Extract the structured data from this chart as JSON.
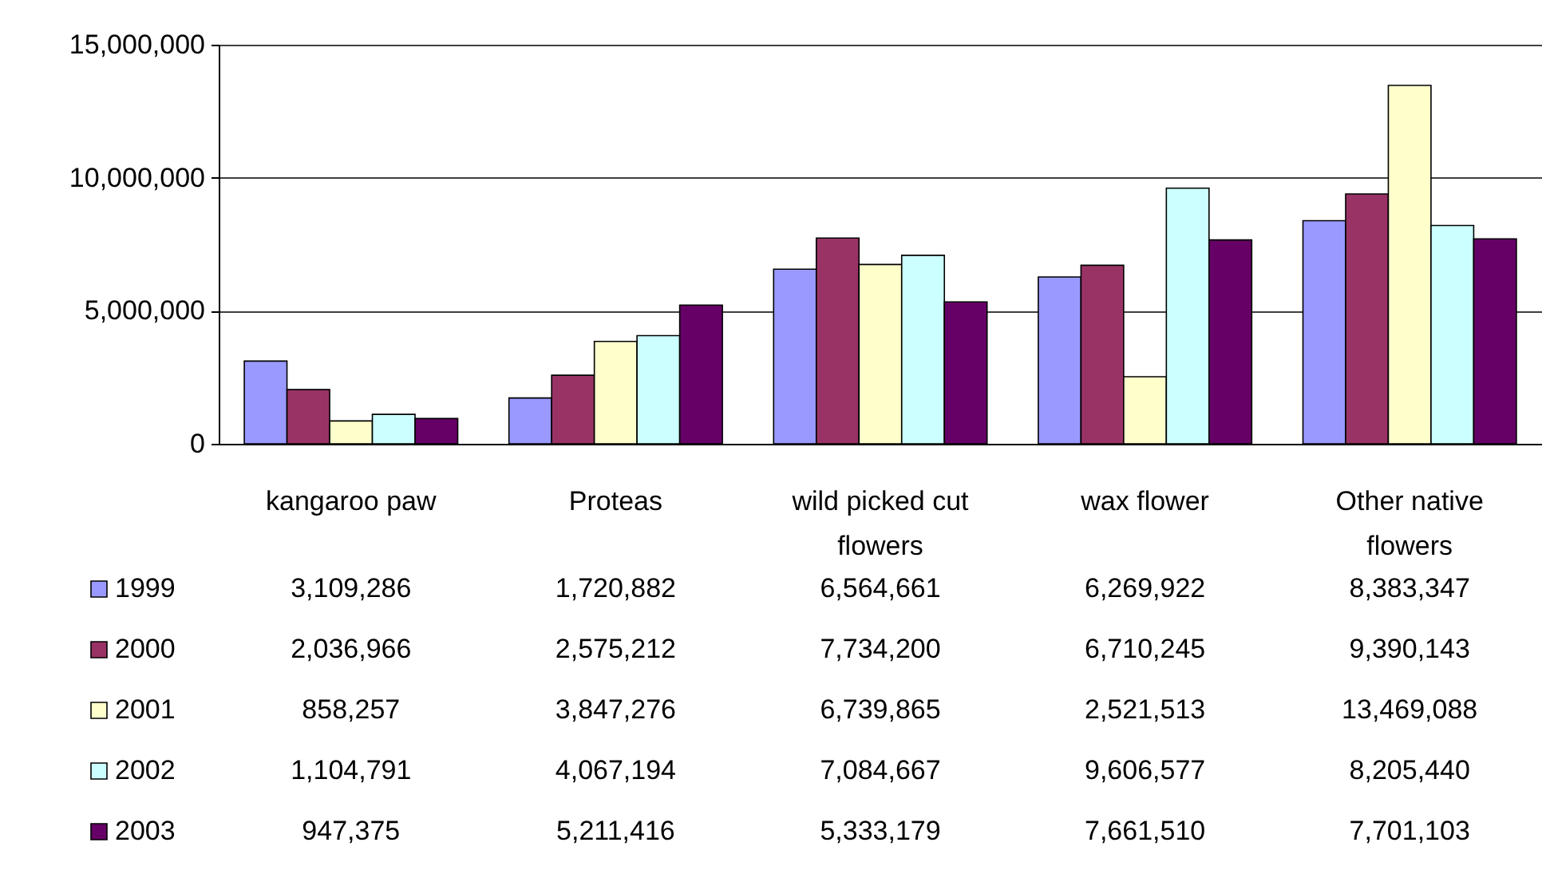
{
  "chart_data": {
    "type": "bar",
    "categories": [
      "kangaroo paw",
      "Proteas",
      "wild picked cut flowers",
      "wax flower",
      "Other native flowers"
    ],
    "series": [
      {
        "name": "1999",
        "color": "#9999ff",
        "values": [
          3109286,
          1720882,
          6564661,
          6269922,
          8383347
        ],
        "value_labels": [
          "3,109,286",
          "1,720,882",
          "6,564,661",
          "6,269,922",
          "8,383,347"
        ]
      },
      {
        "name": "2000",
        "color": "#993366",
        "values": [
          2036966,
          2575212,
          7734200,
          6710245,
          9390143
        ],
        "value_labels": [
          "2,036,966",
          "2,575,212",
          "7,734,200",
          "6,710,245",
          "9,390,143"
        ]
      },
      {
        "name": "2001",
        "color": "#ffffcc",
        "values": [
          858257,
          3847276,
          6739865,
          2521513,
          13469088
        ],
        "value_labels": [
          "858,257",
          "3,847,276",
          "6,739,865",
          "2,521,513",
          "13,469,088"
        ]
      },
      {
        "name": "2002",
        "color": "#ccffff",
        "values": [
          1104791,
          4067194,
          7084667,
          9606577,
          8205440
        ],
        "value_labels": [
          "1,104,791",
          "4,067,194",
          "7,084,667",
          "9,606,577",
          "8,205,440"
        ]
      },
      {
        "name": "2003",
        "color": "#660066",
        "values": [
          947375,
          5211416,
          5333179,
          7661510,
          7701103
        ],
        "value_labels": [
          "947,375",
          "5,211,416",
          "5,333,179",
          "7,661,510",
          "7,701,103"
        ]
      }
    ],
    "ylim": [
      0,
      15000000
    ],
    "yticks": [
      {
        "value": 0,
        "label": "0"
      },
      {
        "value": 5000000,
        "label": "5,000,000"
      },
      {
        "value": 10000000,
        "label": "10,000,000"
      },
      {
        "value": 15000000,
        "label": "15,000,000"
      }
    ],
    "grid": "y",
    "legend": "bottom left"
  }
}
